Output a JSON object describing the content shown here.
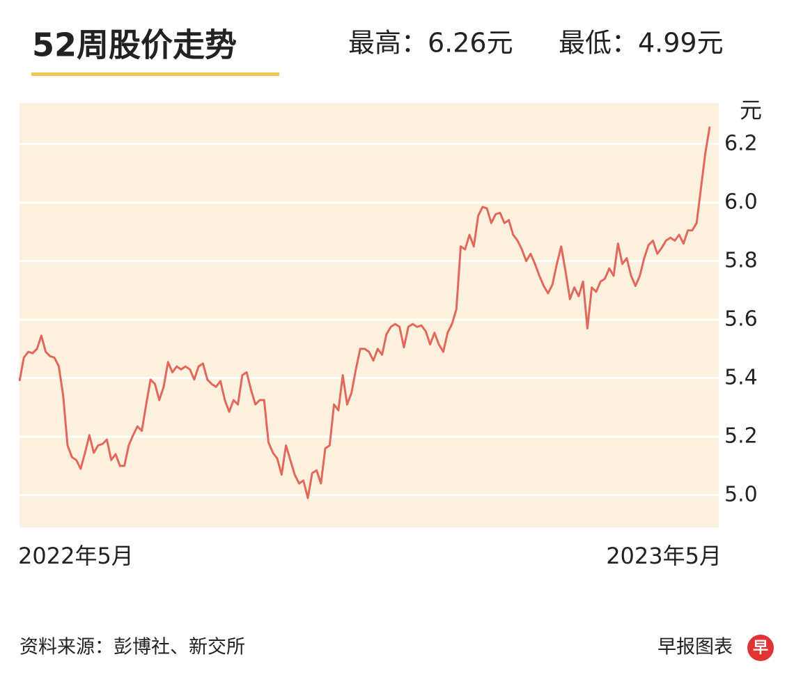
{
  "header": {
    "title": "52周股价走势",
    "high": "最高：6.26元",
    "low": "最低：4.99元"
  },
  "chart_data": {
    "type": "line",
    "y_label": "元",
    "categories": [
      "2022年5月",
      null,
      null,
      null,
      null,
      null,
      null,
      null,
      null,
      null,
      null,
      null,
      null,
      null,
      null,
      null,
      null,
      null,
      null,
      null,
      null,
      null,
      null,
      null,
      null,
      null,
      null,
      null,
      null,
      null,
      null,
      null,
      null,
      null,
      null,
      null,
      null,
      null,
      null,
      null,
      null,
      null,
      null,
      null,
      null,
      null,
      null,
      null,
      null,
      null,
      null,
      null,
      null,
      null,
      null,
      null,
      null,
      null,
      null,
      null,
      null,
      null,
      null,
      null,
      null,
      null,
      null,
      null,
      null,
      null,
      null,
      null,
      null,
      null,
      null,
      null,
      null,
      null,
      null,
      null,
      null,
      null,
      null,
      null,
      null,
      null,
      null,
      null,
      null,
      null,
      null,
      null,
      null,
      null,
      null,
      null,
      null,
      null,
      null,
      null,
      null,
      null,
      null,
      null,
      null,
      null,
      null,
      null,
      null,
      null,
      null,
      null,
      null,
      null,
      null,
      null,
      null,
      null,
      null,
      null,
      null,
      null,
      null,
      null,
      null,
      null,
      null,
      null,
      null,
      null,
      null,
      null,
      null,
      null,
      null,
      null,
      null,
      null,
      null,
      null,
      null,
      null,
      null,
      null,
      null,
      null,
      null,
      null,
      null,
      null,
      null,
      null,
      null,
      null,
      null,
      null,
      null,
      null,
      "2023年5月"
    ],
    "series": [
      {
        "color": "#e2685c",
        "values": [
          5.39,
          5.47,
          5.49,
          5.485,
          5.5,
          5.545,
          5.49,
          5.475,
          5.47,
          5.44,
          5.34,
          5.17,
          5.13,
          5.12,
          5.09,
          5.145,
          5.205,
          5.145,
          5.17,
          5.175,
          5.19,
          5.12,
          5.14,
          5.1,
          5.1,
          5.17,
          5.205,
          5.235,
          5.22,
          5.31,
          5.395,
          5.38,
          5.325,
          5.37,
          5.455,
          5.42,
          5.44,
          5.43,
          5.44,
          5.43,
          5.395,
          5.44,
          5.45,
          5.395,
          5.38,
          5.37,
          5.39,
          5.325,
          5.285,
          5.325,
          5.31,
          5.41,
          5.42,
          5.36,
          5.31,
          5.325,
          5.325,
          5.18,
          5.145,
          5.125,
          5.07,
          5.17,
          5.12,
          5.07,
          5.04,
          5.05,
          4.99,
          5.075,
          5.085,
          5.04,
          5.16,
          5.17,
          5.31,
          5.29,
          5.41,
          5.31,
          5.35,
          5.43,
          5.5,
          5.5,
          5.49,
          5.46,
          5.5,
          5.48,
          5.55,
          5.575,
          5.585,
          5.575,
          5.505,
          5.575,
          5.585,
          5.575,
          5.58,
          5.56,
          5.515,
          5.555,
          5.515,
          5.49,
          5.555,
          5.585,
          5.635,
          5.85,
          5.84,
          5.89,
          5.85,
          5.955,
          5.985,
          5.98,
          5.93,
          5.96,
          5.965,
          5.93,
          5.94,
          5.89,
          5.87,
          5.84,
          5.8,
          5.825,
          5.79,
          5.75,
          5.715,
          5.69,
          5.72,
          5.79,
          5.85,
          5.765,
          5.67,
          5.71,
          5.68,
          5.73,
          5.57,
          5.71,
          5.695,
          5.73,
          5.74,
          5.775,
          5.75,
          5.86,
          5.79,
          5.81,
          5.75,
          5.715,
          5.75,
          5.81,
          5.855,
          5.87,
          5.825,
          5.845,
          5.87,
          5.88,
          5.87,
          5.89,
          5.86,
          5.905,
          5.905,
          5.93,
          6.05,
          6.17,
          6.26
        ]
      }
    ],
    "ylim": [
      4.89,
      6.34
    ],
    "yticks": [
      {
        "value": 5,
        "label": "5.0"
      },
      5.2,
      5.4,
      5.6,
      5.8,
      {
        "value": 6,
        "label": "6.0"
      },
      6.2
    ],
    "grid": true,
    "background": "#fcf0de"
  },
  "footer": {
    "source": "资料来源：彭博社、新交所",
    "credit": "早报图表",
    "logo": "早"
  }
}
